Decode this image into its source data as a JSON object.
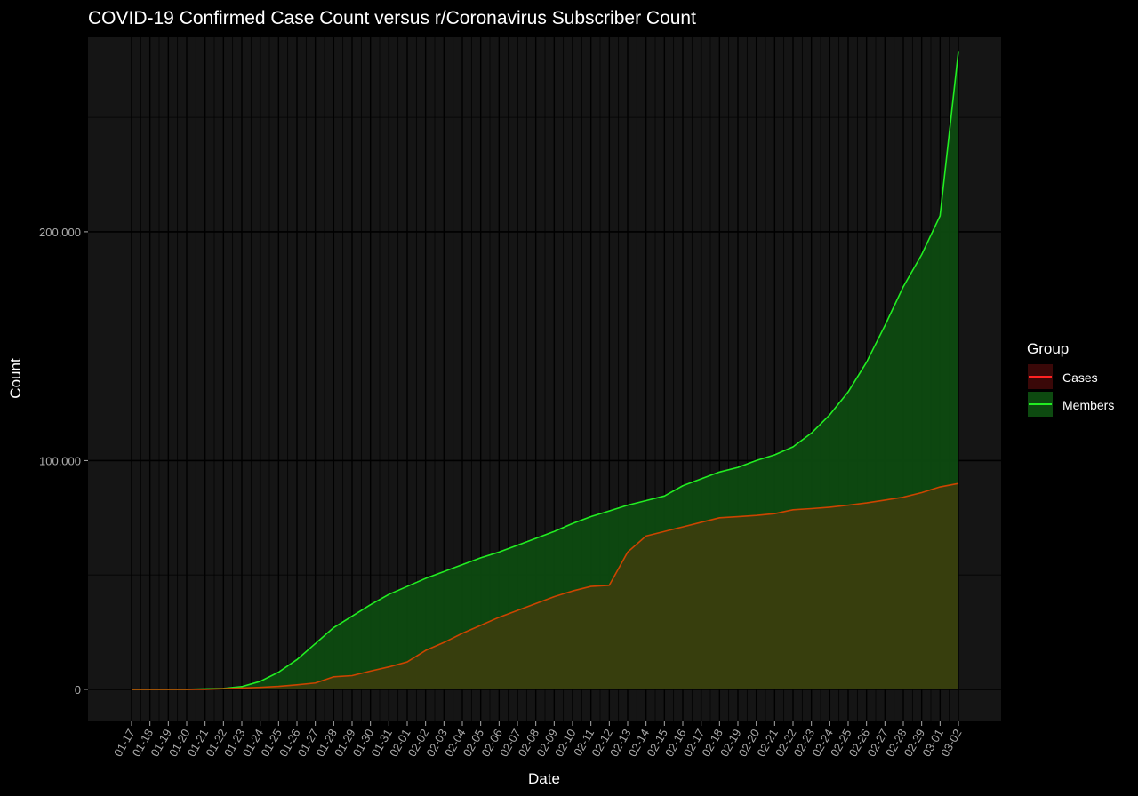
{
  "chart_data": {
    "type": "area",
    "title": "COVID-19 Confirmed Case Count versus r/Coronavirus Subscriber Count",
    "xlabel": "Date",
    "ylabel": "Count",
    "ylim": [
      -14000,
      285000
    ],
    "yticks": [
      0,
      100000,
      200000
    ],
    "ytick_labels": [
      "0",
      "100,000",
      "200,000"
    ],
    "categories": [
      "01-17",
      "01-18",
      "01-19",
      "01-20",
      "01-21",
      "01-22",
      "01-23",
      "01-24",
      "01-25",
      "01-26",
      "01-27",
      "01-28",
      "01-29",
      "01-30",
      "01-31",
      "02-01",
      "02-02",
      "02-03",
      "02-04",
      "02-05",
      "02-06",
      "02-07",
      "02-08",
      "02-09",
      "02-10",
      "02-11",
      "02-12",
      "02-13",
      "02-14",
      "02-15",
      "02-16",
      "02-17",
      "02-18",
      "02-19",
      "02-20",
      "02-21",
      "02-22",
      "02-23",
      "02-24",
      "02-25",
      "02-26",
      "02-27",
      "02-28",
      "02-29",
      "03-01",
      "03-02"
    ],
    "legend": {
      "title": "Group",
      "position": "right"
    },
    "grid": true,
    "series": [
      {
        "name": "Members",
        "color": "#22ee22",
        "fill": "#0d4a10",
        "values": [
          0,
          0,
          0,
          0,
          200,
          400,
          1200,
          3500,
          7500,
          13000,
          20000,
          27000,
          32000,
          37000,
          41500,
          45000,
          48500,
          51500,
          54500,
          57500,
          60000,
          63000,
          66000,
          69000,
          72500,
          75500,
          78000,
          80500,
          82500,
          84500,
          89000,
          92000,
          95000,
          97000,
          100000,
          102500,
          106000,
          112000,
          120000,
          130000,
          143000,
          159000,
          176000,
          190000,
          207000,
          279000
        ]
      },
      {
        "name": "Cases",
        "color": "#cc4400",
        "fill": "#3a3e0e",
        "values": [
          0,
          0,
          0,
          0,
          0,
          300,
          600,
          900,
          1300,
          2000,
          2800,
          5500,
          6000,
          8000,
          9800,
          12000,
          17000,
          20500,
          24500,
          28000,
          31500,
          34500,
          37500,
          40500,
          43000,
          45000,
          45500,
          60000,
          67000,
          69000,
          71000,
          73000,
          75000,
          75500,
          76000,
          76800,
          78500,
          79000,
          79600,
          80500,
          81500,
          82700,
          84000,
          86000,
          88500,
          90000
        ]
      }
    ]
  }
}
